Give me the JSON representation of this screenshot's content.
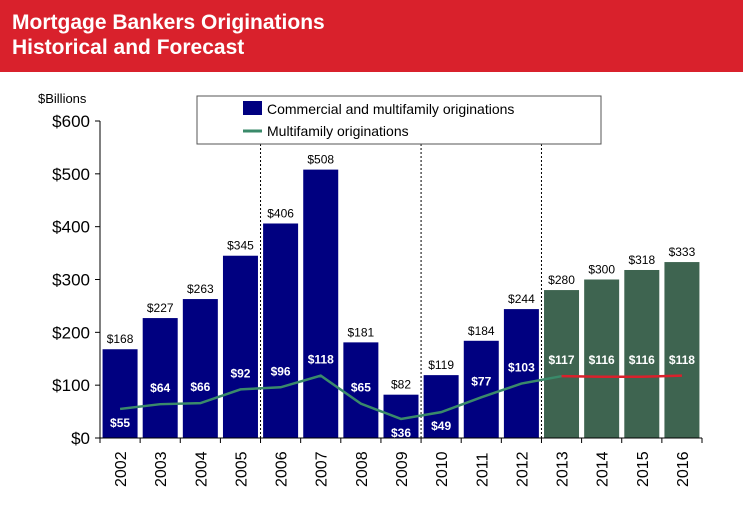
{
  "header": {
    "title_line1": "Mortgage Bankers Originations",
    "title_line2": "Historical and Forecast"
  },
  "colors": {
    "header_bg": "#d9212c",
    "historical_bar": "#000080",
    "forecast_bar": "#3e6450",
    "multifamily_line": "#3a8a6a",
    "forecast_line": "#d9212c"
  },
  "chart_data": {
    "type": "bar",
    "title": "Mortgage Bankers Originations Historical and Forecast",
    "ylabel": "$Billions",
    "xlabel": "",
    "ylim": [
      0,
      600
    ],
    "yticks": [
      "$0",
      "$100",
      "$200",
      "$300",
      "$400",
      "$500",
      "$600"
    ],
    "categories": [
      "2002",
      "2003",
      "2004",
      "2005",
      "2006",
      "2007",
      "2008",
      "2009",
      "2010",
      "2011",
      "2012",
      "2013",
      "2014",
      "2015",
      "2016"
    ],
    "forecast_start_index": 11,
    "dividers_after": [
      "2005",
      "2009",
      "2012"
    ],
    "legend": {
      "position": "top-center",
      "bar_label": "Commercial and multifamily originations",
      "line_label": "Multifamily originations"
    },
    "series": [
      {
        "name": "Commercial and multifamily originations",
        "kind": "bar",
        "values": [
          168,
          227,
          263,
          345,
          406,
          508,
          181,
          82,
          119,
          184,
          244,
          280,
          300,
          318,
          333
        ],
        "labels": [
          "$168",
          "$227",
          "$263",
          "$345",
          "$406",
          "$508",
          "$181",
          "$82",
          "$119",
          "$184",
          "$244",
          "$280",
          "$300",
          "$318",
          "$333"
        ]
      },
      {
        "name": "Multifamily originations",
        "kind": "line",
        "values": [
          55,
          64,
          66,
          92,
          96,
          118,
          65,
          36,
          49,
          77,
          103,
          117,
          116,
          116,
          118
        ],
        "labels": [
          "$55",
          "$64",
          "$66",
          "$92",
          "$96",
          "$118",
          "$65",
          "$36",
          "$49",
          "$77",
          "$103",
          "$117",
          "$116",
          "$116",
          "$118"
        ]
      }
    ]
  }
}
